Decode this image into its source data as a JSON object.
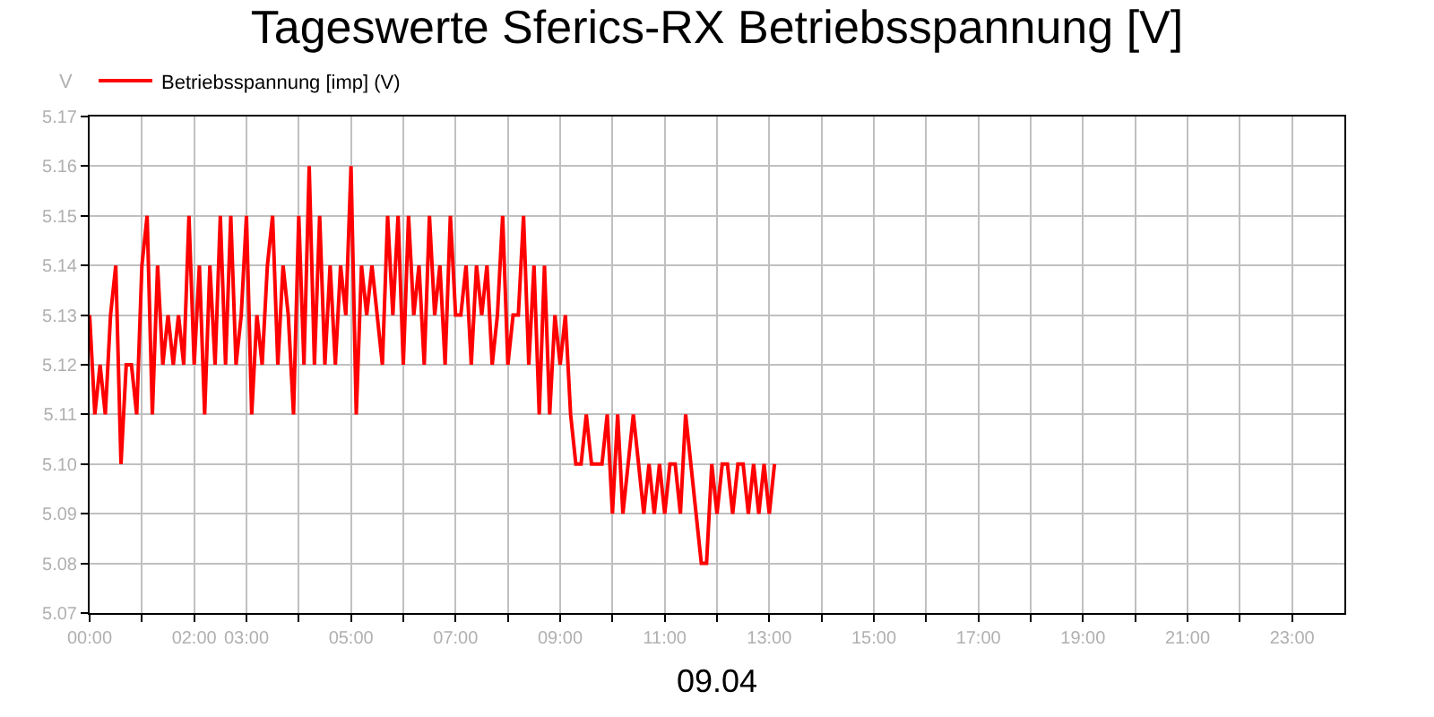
{
  "chart_data": {
    "type": "line",
    "title": "Tageswerte Sferics-RX Betriebsspannung [V]",
    "xlabel": "09.04",
    "ylabel": "V",
    "x": [
      0.0,
      0.1,
      0.2,
      0.3,
      0.4,
      0.5,
      0.6,
      0.7,
      0.8,
      0.9,
      1.0,
      1.1,
      1.2,
      1.3,
      1.4,
      1.5,
      1.6,
      1.7,
      1.8,
      1.9,
      2.0,
      2.1,
      2.2,
      2.3,
      2.4,
      2.5,
      2.6,
      2.7,
      2.8,
      2.9,
      3.0,
      3.1,
      3.2,
      3.3,
      3.4,
      3.5,
      3.6,
      3.7,
      3.8,
      3.9,
      4.0,
      4.1,
      4.2,
      4.3,
      4.4,
      4.5,
      4.6,
      4.7,
      4.8,
      4.9,
      5.0,
      5.1,
      5.2,
      5.3,
      5.4,
      5.5,
      5.6,
      5.7,
      5.8,
      5.9,
      6.0,
      6.1,
      6.2,
      6.3,
      6.4,
      6.5,
      6.6,
      6.7,
      6.8,
      6.9,
      7.0,
      7.1,
      7.2,
      7.3,
      7.4,
      7.5,
      7.6,
      7.7,
      7.8,
      7.9,
      8.0,
      8.1,
      8.2,
      8.3,
      8.4,
      8.5,
      8.6,
      8.7,
      8.8,
      8.9,
      9.0,
      9.1,
      9.2,
      9.3,
      9.4,
      9.5,
      9.6,
      9.7,
      9.8,
      9.9,
      10.0,
      10.1,
      10.2,
      10.3,
      10.4,
      10.5,
      10.6,
      10.7,
      10.8,
      10.9,
      11.0,
      11.1,
      11.2,
      11.3,
      11.4,
      11.5,
      11.6,
      11.7,
      11.8,
      11.9,
      12.0,
      12.1,
      12.2,
      12.3,
      12.4,
      12.5,
      12.6,
      12.7,
      12.8,
      12.9,
      13.0,
      13.1
    ],
    "series": [
      {
        "name": "Betriebsspannung [imp] (V)",
        "color": "#ff0000",
        "values": [
          5.13,
          5.11,
          5.12,
          5.11,
          5.13,
          5.14,
          5.1,
          5.12,
          5.12,
          5.11,
          5.14,
          5.15,
          5.11,
          5.14,
          5.12,
          5.13,
          5.12,
          5.13,
          5.12,
          5.15,
          5.12,
          5.14,
          5.11,
          5.14,
          5.12,
          5.15,
          5.12,
          5.15,
          5.12,
          5.13,
          5.15,
          5.11,
          5.13,
          5.12,
          5.14,
          5.15,
          5.12,
          5.14,
          5.13,
          5.11,
          5.15,
          5.12,
          5.16,
          5.12,
          5.15,
          5.12,
          5.14,
          5.12,
          5.14,
          5.13,
          5.16,
          5.11,
          5.14,
          5.13,
          5.14,
          5.13,
          5.12,
          5.15,
          5.13,
          5.15,
          5.12,
          5.15,
          5.13,
          5.14,
          5.12,
          5.15,
          5.13,
          5.14,
          5.12,
          5.15,
          5.13,
          5.13,
          5.14,
          5.12,
          5.14,
          5.13,
          5.14,
          5.12,
          5.13,
          5.15,
          5.12,
          5.13,
          5.13,
          5.15,
          5.12,
          5.14,
          5.11,
          5.14,
          5.11,
          5.13,
          5.12,
          5.13,
          5.11,
          5.1,
          5.1,
          5.11,
          5.1,
          5.1,
          5.1,
          5.11,
          5.09,
          5.11,
          5.09,
          5.1,
          5.11,
          5.1,
          5.09,
          5.1,
          5.09,
          5.1,
          5.09,
          5.1,
          5.1,
          5.09,
          5.11,
          5.1,
          5.09,
          5.08,
          5.08,
          5.1,
          5.09,
          5.1,
          5.1,
          5.09,
          5.1,
          5.1,
          5.09,
          5.1,
          5.09,
          5.1,
          5.09,
          5.1
        ]
      }
    ],
    "xlim": [
      0,
      24
    ],
    "xticks": [
      {
        "value": 0,
        "label": "00:00"
      },
      {
        "value": 1,
        "label": null
      },
      {
        "value": 2,
        "label": "02:00"
      },
      {
        "value": 3,
        "label": "03:00"
      },
      {
        "value": 4,
        "label": null
      },
      {
        "value": 5,
        "label": "05:00"
      },
      {
        "value": 6,
        "label": null
      },
      {
        "value": 7,
        "label": "07:00"
      },
      {
        "value": 8,
        "label": null
      },
      {
        "value": 9,
        "label": "09:00"
      },
      {
        "value": 10,
        "label": null
      },
      {
        "value": 11,
        "label": "11:00"
      },
      {
        "value": 12,
        "label": null
      },
      {
        "value": 13,
        "label": "13:00"
      },
      {
        "value": 14,
        "label": null
      },
      {
        "value": 15,
        "label": "15:00"
      },
      {
        "value": 16,
        "label": null
      },
      {
        "value": 17,
        "label": "17:00"
      },
      {
        "value": 18,
        "label": null
      },
      {
        "value": 19,
        "label": "19:00"
      },
      {
        "value": 20,
        "label": null
      },
      {
        "value": 21,
        "label": "21:00"
      },
      {
        "value": 22,
        "label": null
      },
      {
        "value": 23,
        "label": "23:00"
      }
    ],
    "ylim": [
      5.07,
      5.17
    ],
    "yticks": [
      5.07,
      5.08,
      5.09,
      {
        "value": 5.1,
        "label": "5.10"
      },
      5.11,
      5.12,
      5.13,
      5.14,
      5.15,
      5.16,
      5.17
    ],
    "grid": true,
    "legend": "top left",
    "marker": "none",
    "line_style": "solid"
  }
}
